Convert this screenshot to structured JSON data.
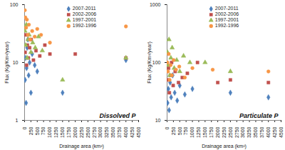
{
  "chart_data": [
    {
      "type": "scatter",
      "title": "Dissolved P",
      "x_label": "Drainage area (km²)",
      "y_label": "Flux (Kg/Km²/year)",
      "log": "y",
      "legend": "top",
      "xlim": [
        0,
        4500
      ],
      "xticks": [
        0,
        250,
        500,
        750,
        1000,
        1250,
        1500,
        1750,
        2000,
        2250,
        2500,
        2750,
        3000,
        3250,
        3500,
        3750,
        4000,
        4250,
        4500
      ],
      "ylim": [
        1,
        100
      ],
      "yticks": [
        1,
        10,
        100
      ],
      "series": [
        {
          "name": "2007-2011",
          "color": "#4F81BD",
          "marker": "diamond",
          "x": [
            20,
            40,
            60,
            80,
            100,
            130,
            160,
            200,
            250,
            300,
            400,
            500,
            1500,
            4000
          ],
          "values": [
            5,
            12,
            2,
            8,
            18,
            25,
            6,
            10,
            3,
            14,
            9,
            7,
            3,
            11
          ]
        },
        {
          "name": "2002-2006",
          "color": "#C0504D",
          "marker": "square",
          "x": [
            20,
            50,
            80,
            110,
            150,
            200,
            260,
            350,
            450,
            600,
            800,
            1000,
            2000,
            4000
          ],
          "values": [
            15,
            30,
            9,
            20,
            12,
            18,
            25,
            11,
            16,
            13,
            20,
            14,
            14,
            12
          ]
        },
        {
          "name": "1997-2001",
          "color": "#9BBB59",
          "marker": "triangle",
          "x": [
            15,
            40,
            70,
            100,
            140,
            180,
            250,
            320,
            420,
            550,
            700,
            1500,
            4000
          ],
          "values": [
            35,
            20,
            45,
            12,
            25,
            30,
            15,
            22,
            18,
            28,
            16,
            5,
            12
          ]
        },
        {
          "name": "1992-1996",
          "color": "#F79646",
          "marker": "circle",
          "x": [
            10,
            30,
            60,
            90,
            130,
            170,
            220,
            300,
            400,
            500,
            650,
            1000,
            4000
          ],
          "values": [
            80,
            60,
            40,
            55,
            30,
            45,
            25,
            35,
            28,
            38,
            30,
            22,
            42
          ]
        }
      ]
    },
    {
      "type": "scatter",
      "title": "Particulate P",
      "x_label": "Drainage area (km²)",
      "y_label": "Flux (Kg/Km²/year)",
      "log": "y",
      "legend": "top",
      "xlim": [
        0,
        4500
      ],
      "xticks": [
        0,
        250,
        500,
        750,
        1000,
        1250,
        1500,
        1750,
        2000,
        2250,
        2500,
        2750,
        3000,
        3250,
        3500,
        3750,
        4000,
        4250,
        4500
      ],
      "ylim": [
        10,
        1000
      ],
      "yticks": [
        10,
        100,
        1000
      ],
      "series": [
        {
          "name": "2007-2011",
          "color": "#4F81BD",
          "marker": "diamond",
          "x": [
            20,
            50,
            80,
            120,
            160,
            220,
            300,
            400,
            500,
            700,
            1000,
            2500,
            4000
          ],
          "values": [
            20,
            35,
            15,
            45,
            25,
            60,
            30,
            22,
            40,
            28,
            35,
            30,
            25
          ]
        },
        {
          "name": "2002-2006",
          "color": "#C0504D",
          "marker": "square",
          "x": [
            25,
            60,
            90,
            130,
            180,
            240,
            320,
            450,
            600,
            800,
            1200,
            2000,
            2500,
            4000
          ],
          "values": [
            50,
            80,
            30,
            60,
            100,
            40,
            70,
            45,
            55,
            65,
            100,
            45,
            50,
            45
          ]
        },
        {
          "name": "1997-2001",
          "color": "#9BBB59",
          "marker": "triangle",
          "x": [
            15,
            45,
            75,
            110,
            150,
            200,
            280,
            380,
            500,
            650,
            900,
            1500,
            2500
          ],
          "values": [
            150,
            90,
            250,
            60,
            120,
            180,
            80,
            110,
            70,
            130,
            100,
            100,
            70
          ]
        },
        {
          "name": "1992-1996",
          "color": "#F79646",
          "marker": "circle",
          "x": [
            10,
            35,
            65,
            100,
            140,
            190,
            260,
            350,
            480,
            700,
            1000,
            1800,
            4000
          ],
          "values": [
            100,
            70,
            140,
            50,
            90,
            60,
            110,
            75,
            85,
            55,
            80,
            75,
            70
          ]
        }
      ]
    }
  ]
}
